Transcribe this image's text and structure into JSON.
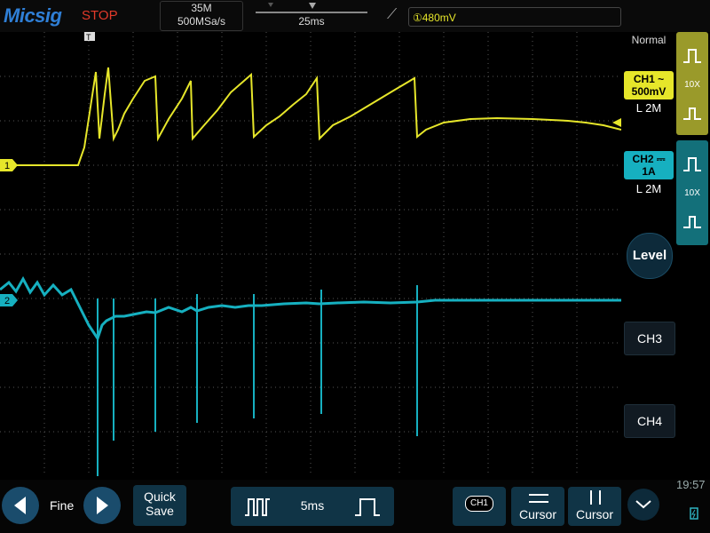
{
  "top_bar": {
    "brand": "Micsig",
    "run_state": "STOP",
    "memory_depth": "35M",
    "sample_rate": "500MSa/s",
    "timebase": "25ms",
    "trigger_slope_icon": "rising-edge-icon",
    "trigger_level": "①480mV"
  },
  "right_panel": {
    "trigger_mode": "Normal",
    "ch1": {
      "label": "CH1",
      "coupling_icon": "ac-coupling-icon",
      "scale": "500mV",
      "memory": "L 2M",
      "probe": "10X",
      "color": "#e6e62a"
    },
    "ch2": {
      "label": "CH2",
      "coupling_icon": "dc-coupling-icon",
      "scale": "1A",
      "memory": "L 2M",
      "probe": "10X",
      "color": "#16b0c0"
    },
    "level_button": "Level",
    "ch3_button": "CH3",
    "ch4_button": "CH4"
  },
  "bottom_bar": {
    "fine_label": "Fine",
    "quick_save_line1": "Quick",
    "quick_save_line2": "Save",
    "timebase_value": "5ms",
    "channel_badge": "CH1",
    "cursor_h_label": "Cursor",
    "cursor_v_label": "Cursor",
    "clock": "19:57"
  },
  "waveform_markers": {
    "ch1_marker": "1",
    "ch2_marker": "2",
    "trigger_marker": "T"
  }
}
